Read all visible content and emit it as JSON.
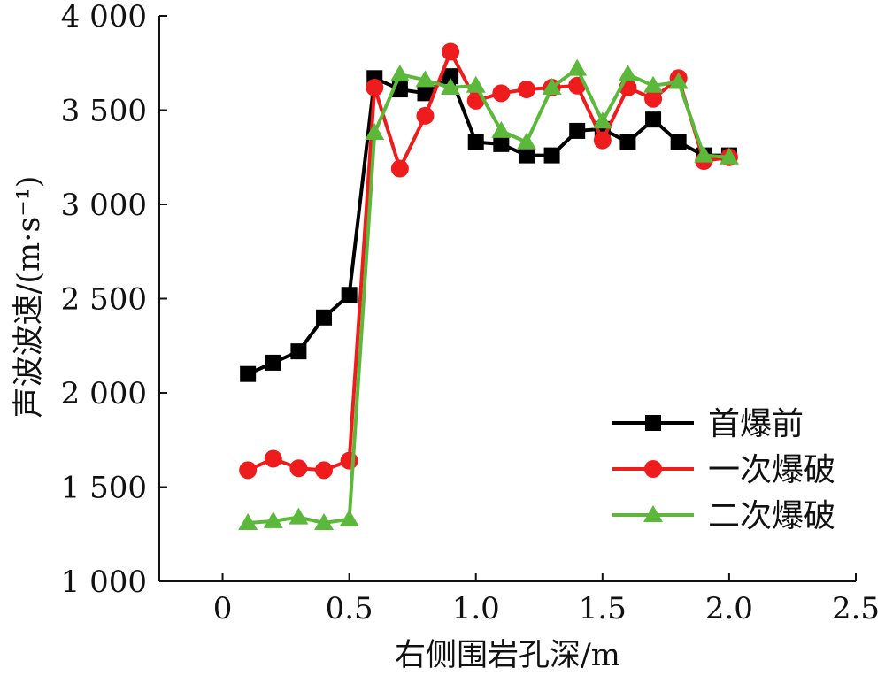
{
  "chart_data": {
    "type": "line",
    "xlabel": "右侧围岩孔深/m",
    "ylabel": "声波波速/(m·s⁻¹)",
    "xlim": [
      -0.25,
      2.5
    ],
    "ylim": [
      1000,
      4000
    ],
    "xticks": [
      0,
      0.5,
      1.0,
      1.5,
      2.0,
      2.5
    ],
    "xtick_labels": [
      "0",
      "0.5",
      "1.0",
      "1.5",
      "2.0",
      "2.5"
    ],
    "yticks": [
      1000,
      1500,
      2000,
      2500,
      3000,
      3500,
      4000
    ],
    "ytick_labels": [
      "1 000",
      "1 500",
      "2 000",
      "2 500",
      "3 000",
      "3 500",
      "4 000"
    ],
    "legend_position": "lower-right",
    "grid": false,
    "x": [
      0.1,
      0.2,
      0.3,
      0.4,
      0.5,
      0.6,
      0.7,
      0.8,
      0.9,
      1.0,
      1.1,
      1.2,
      1.3,
      1.4,
      1.5,
      1.6,
      1.7,
      1.8,
      1.9,
      2.0
    ],
    "series": [
      {
        "name": "首爆前",
        "color": "#000000",
        "marker": "square",
        "values": [
          2100,
          2160,
          2220,
          2400,
          2520,
          3670,
          3610,
          3590,
          3680,
          3330,
          3320,
          3260,
          3260,
          3390,
          3400,
          3330,
          3450,
          3330,
          3260,
          3260
        ]
      },
      {
        "name": "一次爆破",
        "color": "#ee1c1c",
        "marker": "circle",
        "values": [
          1590,
          1650,
          1600,
          1590,
          1640,
          3620,
          3190,
          3470,
          3810,
          3550,
          3590,
          3610,
          3620,
          3630,
          3340,
          3620,
          3560,
          3670,
          3230,
          3250
        ]
      },
      {
        "name": "二次爆破",
        "color": "#5cb83a",
        "marker": "triangle",
        "values": [
          1310,
          1320,
          1340,
          1310,
          1330,
          3380,
          3690,
          3660,
          3620,
          3630,
          3390,
          3330,
          3620,
          3720,
          3440,
          3690,
          3630,
          3650,
          3260,
          3250
        ]
      }
    ]
  }
}
